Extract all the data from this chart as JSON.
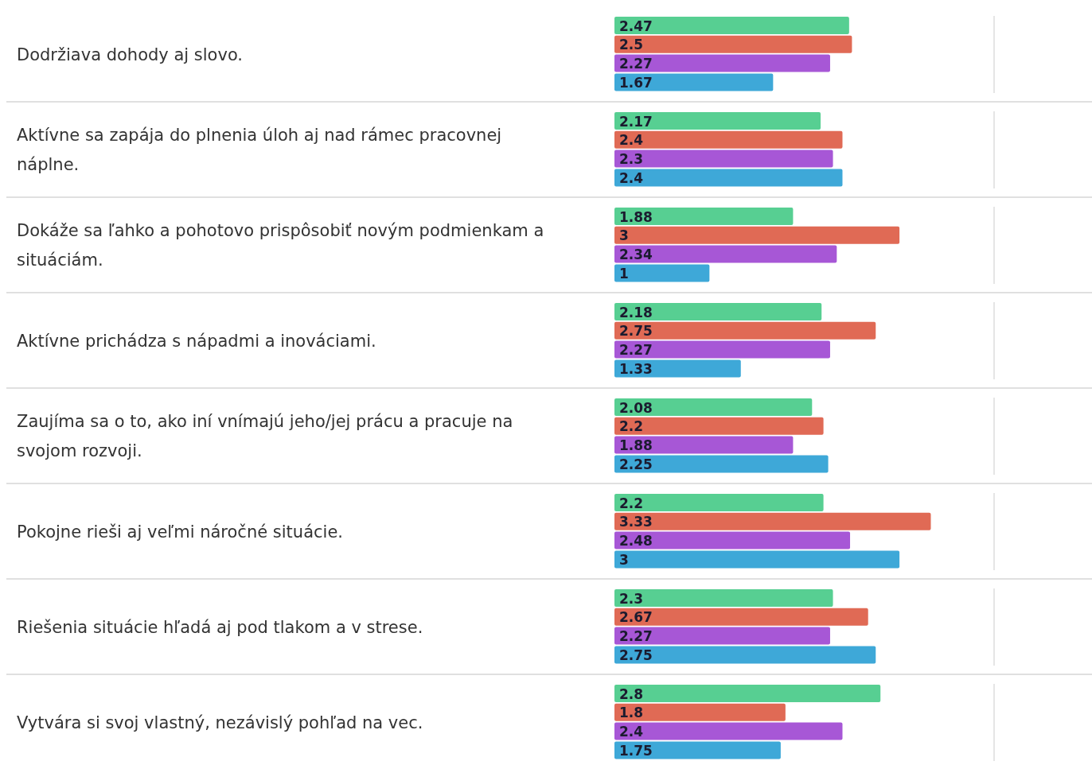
{
  "chart_data": {
    "type": "bar",
    "orientation": "horizontal",
    "data_labels": true,
    "tick_labels": "y",
    "categories": [
      "Dodržiava dohody aj slovo.",
      "Aktívne sa zapája do plnenia úloh aj nad rámec pracovnej náplne.",
      "Dokáže sa ľahko a pohotovo prispôsobiť novým podmienkam a situáciám.",
      "Aktívne prichádza s nápadmi a inováciami.",
      "Zaujíma sa o to, ako iní vnímajú jeho/jej prácu a pracuje na svojom rozvoji.",
      "Pokojne rieši aj veľmi náročné situácie.",
      "Riešenia situácie hľadá aj pod tlakom a v strese.",
      "Vytvára si svoj vlastný, nezávislý pohľad na vec."
    ],
    "series": [
      {
        "color": "#57cf92",
        "values": [
          2.47,
          2.17,
          1.88,
          2.18,
          2.08,
          2.2,
          2.3,
          2.8
        ]
      },
      {
        "color": "#e06a55",
        "values": [
          2.5,
          2.4,
          3,
          2.75,
          2.2,
          3.33,
          2.67,
          1.8
        ]
      },
      {
        "color": "#a757d6",
        "values": [
          2.27,
          2.3,
          2.34,
          2.27,
          1.88,
          2.48,
          2.27,
          2.4
        ]
      },
      {
        "color": "#3ea8d8",
        "values": [
          1.67,
          2.4,
          1,
          1.33,
          2.25,
          3,
          2.75,
          1.75
        ]
      }
    ]
  }
}
